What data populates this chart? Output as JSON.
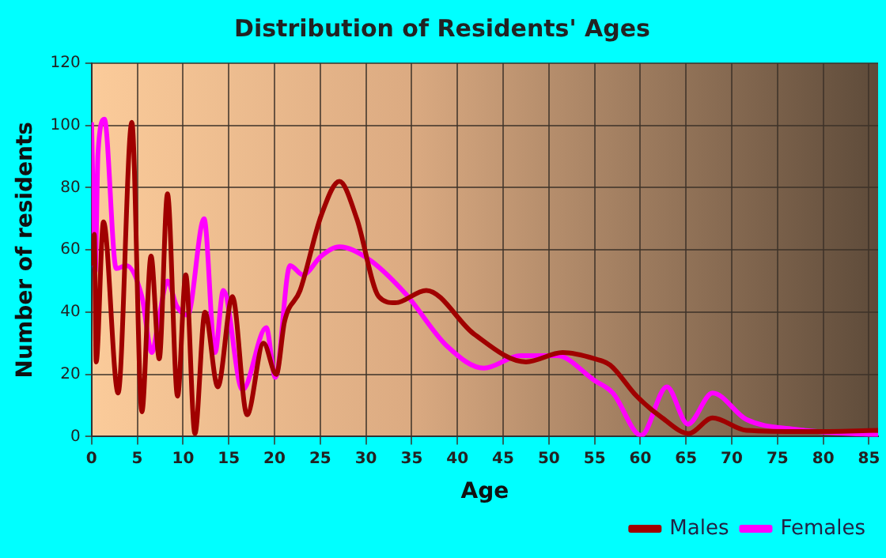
{
  "chart_data": {
    "type": "line",
    "title": "Distribution of Residents' Ages",
    "xlabel": "Age",
    "ylabel": "Number of residents",
    "xlim": [
      0,
      86
    ],
    "xticks": [
      0,
      5,
      10,
      15,
      20,
      25,
      30,
      35,
      40,
      45,
      50,
      55,
      60,
      65,
      70,
      75,
      80,
      85
    ],
    "ylim": [
      0,
      120
    ],
    "yticks": [
      0,
      20,
      40,
      60,
      80,
      100,
      120
    ],
    "grid": true,
    "legend": "bottom right",
    "marker": "none",
    "line_style": "solid",
    "series": [
      {
        "name": "Males",
        "color": "#a00000",
        "x": [
          0,
          0.3,
          0.5,
          1.3,
          2.9,
          4.4,
          5.5,
          6.5,
          7.4,
          8.3,
          9.4,
          10.3,
          11.3,
          12.4,
          13.8,
          15.4,
          17,
          18.8,
          20.2,
          21.1,
          22.8,
          25.1,
          27.1,
          29,
          31.4,
          33.2,
          36.6,
          41.8,
          47.5,
          51.5,
          55,
          56.7,
          59.6,
          62.4,
          65.3,
          67.9,
          71.6,
          78.5,
          86
        ],
        "values": [
          55,
          65,
          24,
          69,
          14,
          101,
          8,
          58,
          25,
          78,
          13,
          52,
          1,
          40,
          16,
          45,
          7,
          30,
          20,
          37,
          47,
          71,
          82,
          70,
          45,
          43,
          47,
          33,
          24,
          27,
          25,
          23,
          13,
          6,
          1,
          6,
          2,
          1.6,
          2
        ]
      },
      {
        "name": "Females",
        "color": "#ff00ff",
        "x": [
          0,
          0.4,
          0.7,
          1.4,
          2.7,
          3.8,
          5.5,
          6.6,
          7.3,
          8.3,
          9.3,
          10.5,
          12.3,
          13.5,
          14.4,
          16.5,
          19.1,
          20.1,
          21.7,
          23.1,
          25.1,
          27.1,
          30.3,
          34.3,
          38.9,
          42.9,
          46.9,
          50.9,
          55,
          57,
          60.1,
          62.9,
          65.2,
          67.9,
          71.6,
          76.8,
          86
        ],
        "values": [
          101,
          53,
          91,
          102,
          54,
          55,
          45,
          27,
          37,
          50,
          42,
          39,
          70,
          27,
          47,
          15,
          35,
          19,
          55,
          52,
          58,
          61,
          57,
          46,
          29,
          22,
          26,
          26,
          18,
          14,
          0.4,
          16,
          4,
          14,
          5.5,
          2.4,
          0.5
        ]
      }
    ]
  }
}
